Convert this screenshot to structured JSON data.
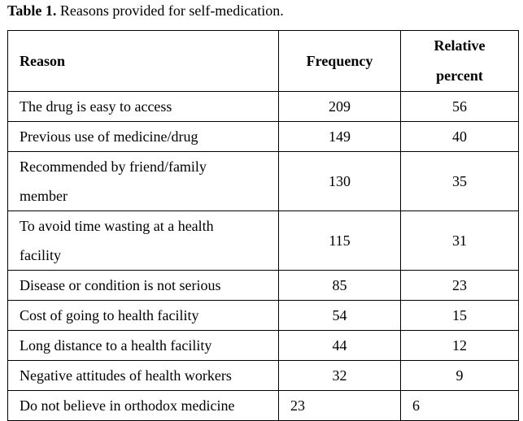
{
  "caption": {
    "label": "Table 1.",
    "text": " Reasons provided for self-medication."
  },
  "table": {
    "headers": {
      "reason": "Reason",
      "frequency": "Frequency",
      "relative_line1": "Relative",
      "relative_line2": "percent"
    },
    "rows": [
      {
        "reason": "The drug is easy to access",
        "frequency": "209",
        "relative": "56"
      },
      {
        "reason": "Previous use of medicine/drug",
        "frequency": "149",
        "relative": "40"
      },
      {
        "reason_line1": "Recommended by friend/family",
        "reason_line2": "member",
        "frequency": "130",
        "relative": "35"
      },
      {
        "reason_line1": "To avoid time wasting at a health",
        "reason_line2": "facility",
        "frequency": "115",
        "relative": "31"
      },
      {
        "reason": "Disease or condition is not serious",
        "frequency": "85",
        "relative": "23"
      },
      {
        "reason": "Cost of going to health facility",
        "frequency": "54",
        "relative": "15"
      },
      {
        "reason": "Long distance to a health facility",
        "frequency": "44",
        "relative": "12"
      },
      {
        "reason": "Negative attitudes of health workers",
        "frequency": "32",
        "relative": "9"
      },
      {
        "reason": "Do not believe in orthodox medicine",
        "frequency": "23",
        "relative": "6"
      }
    ]
  }
}
